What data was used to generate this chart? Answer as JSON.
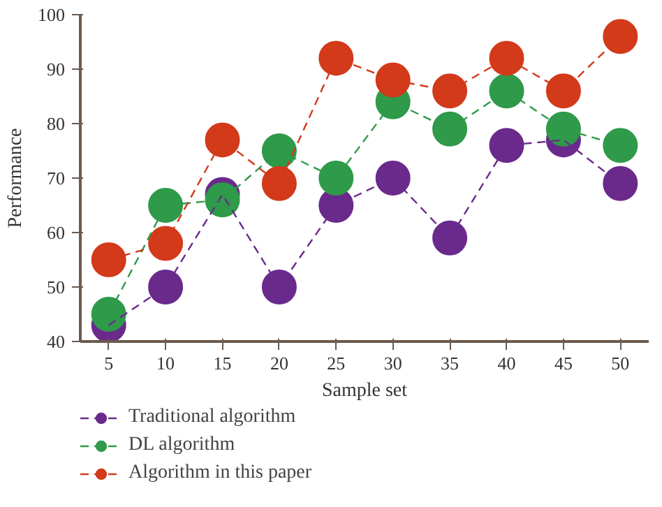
{
  "chart_data": {
    "type": "line",
    "xlabel": "Sample set",
    "ylabel": "Performance",
    "categories": [
      "5",
      "10",
      "15",
      "20",
      "25",
      "30",
      "35",
      "40",
      "45",
      "50"
    ],
    "ylim": [
      40,
      100
    ],
    "yticks": [
      40,
      50,
      60,
      70,
      80,
      90,
      100
    ],
    "series": [
      {
        "name": "Traditional algorithm",
        "color": "#6a2a8c",
        "values": [
          43,
          50,
          67,
          50,
          65,
          70,
          59,
          76,
          77,
          69
        ]
      },
      {
        "name": "DL algorithm",
        "color": "#2e9a4a",
        "values": [
          45,
          65,
          66,
          75,
          70,
          84,
          79,
          86,
          79,
          76
        ]
      },
      {
        "name": "Algorithm in this paper",
        "color": "#d23a1a",
        "values": [
          55,
          58,
          77,
          69,
          92,
          88,
          86,
          92,
          86,
          96
        ]
      }
    ],
    "marker": "circle",
    "line_style": "dashed",
    "grid": false,
    "legend": "bottom left"
  }
}
